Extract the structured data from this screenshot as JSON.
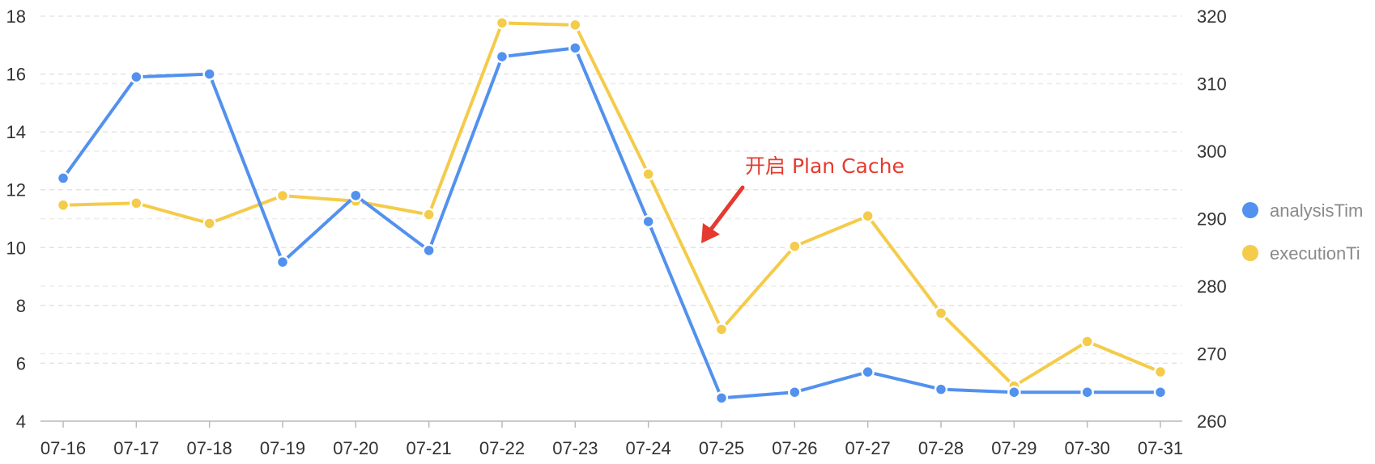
{
  "chart_data": {
    "type": "line",
    "title": "",
    "xlabel": "",
    "ylabel": "",
    "categories": [
      "07-16",
      "07-17",
      "07-18",
      "07-19",
      "07-20",
      "07-21",
      "07-22",
      "07-23",
      "07-24",
      "07-25",
      "07-26",
      "07-27",
      "07-28",
      "07-29",
      "07-30",
      "07-31"
    ],
    "y_left": {
      "ticks": [
        "4",
        "6",
        "8",
        "10",
        "12",
        "14",
        "16",
        "18"
      ],
      "range": [
        4,
        18
      ]
    },
    "y_right": {
      "ticks": [
        "260",
        "270",
        "280",
        "290",
        "300",
        "310",
        "320"
      ],
      "range": [
        260,
        320
      ]
    },
    "grid": "horizontal dashed",
    "legend_position": "right",
    "series": [
      {
        "name": "analysisTim",
        "axis": "left",
        "color": "#5291ee",
        "values": [
          12.4,
          15.9,
          16.0,
          9.5,
          11.8,
          9.9,
          16.6,
          16.9,
          10.9,
          4.8,
          5.0,
          5.7,
          5.1,
          5.0,
          5.0,
          5.0
        ]
      },
      {
        "name": "executionTi",
        "axis": "right",
        "color": "#f4cb4a",
        "values": [
          292.0,
          292.3,
          289.3,
          293.4,
          292.6,
          290.6,
          319.0,
          318.7,
          296.6,
          273.6,
          285.9,
          290.4,
          276.0,
          265.2,
          271.8,
          267.3
        ]
      }
    ],
    "annotations": [
      {
        "text": "开启 Plan Cache",
        "color": "#e53a2f",
        "arrow_toward": "07-25"
      }
    ]
  }
}
